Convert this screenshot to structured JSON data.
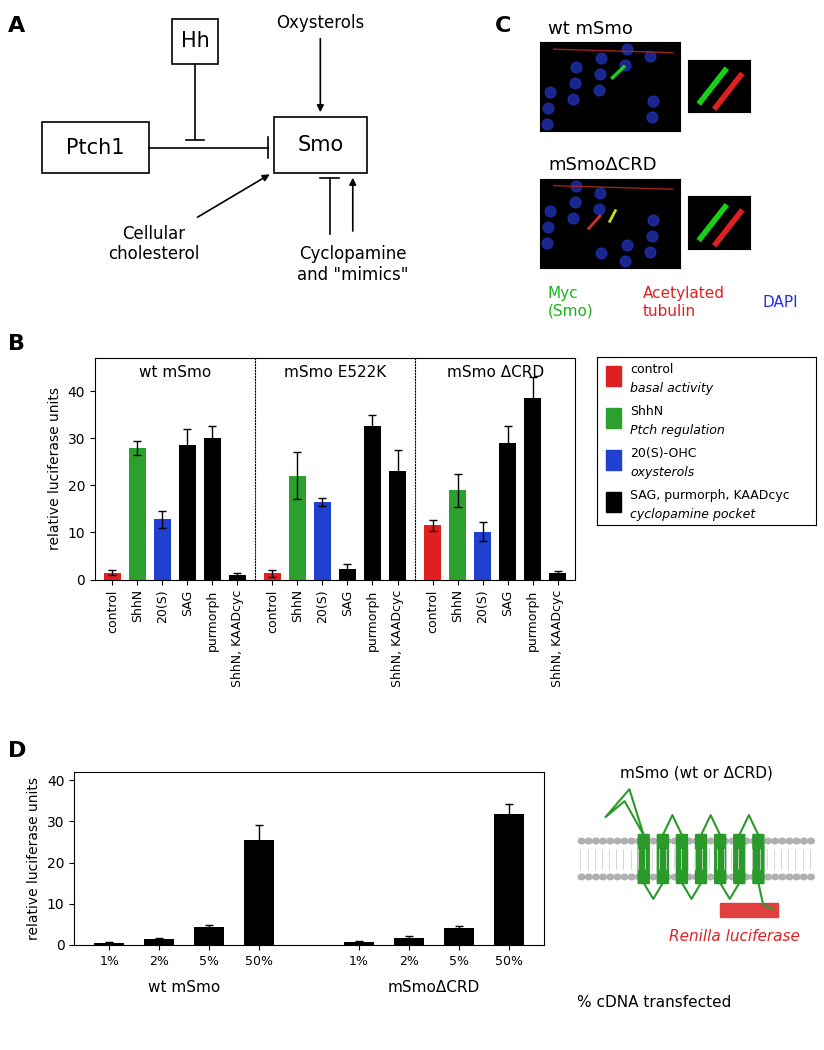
{
  "panel_labels": [
    "A",
    "B",
    "C",
    "D"
  ],
  "diagram": {
    "nodes": [
      "Hh",
      "Ptch1",
      "Smo"
    ],
    "inputs": [
      "Oxysterols",
      "Cellular\ncholesterol",
      "Cyclopamine\nand \"mimics\""
    ]
  },
  "images": {
    "panels": [
      "wt mSmo",
      "mSmoΔCRD"
    ],
    "stains": [
      {
        "label": "Myc\n(Smo)",
        "color": "#19b419"
      },
      {
        "label": "Acetylated\ntubulin",
        "color": "#e02020"
      },
      {
        "label": "DAPI",
        "color": "#2030e0"
      }
    ]
  },
  "legend_B": [
    {
      "name": "control",
      "note": "basal activity",
      "color": "#e02020"
    },
    {
      "name": "ShhN",
      "note": "Ptch regulation",
      "color": "#2ca02c"
    },
    {
      "name": "20(S)-OHC",
      "note": "oxysterols",
      "color": "#2040d0"
    },
    {
      "name": "SAG, purmorph, KAADcyc",
      "note": "cyclopamine pocket",
      "color": "#000000"
    }
  ],
  "chart_data": [
    {
      "type": "bar",
      "title": "wt mSmo",
      "categories": [
        "control",
        "ShhN",
        "20(S)",
        "SAG",
        "purmorph",
        "ShhN, KAADcyc"
      ],
      "values": [
        1.5,
        28,
        12.8,
        28.5,
        30,
        1
      ],
      "errors": [
        0.5,
        1.5,
        1.8,
        3.5,
        2.5,
        0.3
      ],
      "colors": [
        "#e02020",
        "#2ca02c",
        "#2040d0",
        "#000000",
        "#000000",
        "#000000"
      ],
      "ylim": [
        0,
        47
      ],
      "yticks": [
        0,
        10,
        20,
        30,
        40
      ],
      "ylabel": "relative luciferase units"
    },
    {
      "type": "bar",
      "title": "mSmo E522K",
      "categories": [
        "control",
        "ShhN",
        "20(S)",
        "SAG",
        "purmorph",
        "ShhN, KAADcyc"
      ],
      "values": [
        1.3,
        22,
        16.5,
        2.3,
        32.5,
        23
      ],
      "errors": [
        0.8,
        5,
        0.8,
        1,
        2.5,
        4.5
      ],
      "colors": [
        "#e02020",
        "#2ca02c",
        "#2040d0",
        "#000000",
        "#000000",
        "#000000"
      ],
      "ylim": [
        0,
        47
      ],
      "tick_labels": "x"
    },
    {
      "type": "bar",
      "title": "mSmo ΔCRD",
      "categories": [
        "control",
        "ShhN",
        "20(S)",
        "SAG",
        "purmorph",
        "ShhN, KAADcyc"
      ],
      "values": [
        11.5,
        19,
        10.2,
        29,
        38.5,
        1.5
      ],
      "errors": [
        1.2,
        3.5,
        2,
        3.5,
        4.5,
        0.3
      ],
      "colors": [
        "#e02020",
        "#2ca02c",
        "#2040d0",
        "#000000",
        "#000000",
        "#000000"
      ],
      "ylim": [
        0,
        47
      ],
      "tick_labels": "x"
    },
    {
      "type": "bar",
      "categories": [
        "1%",
        "2%",
        "5%",
        "50%"
      ],
      "series": [
        {
          "name": "wt mSmo",
          "color": "#000000",
          "values": [
            0.6,
            1.4,
            4.4,
            25.5
          ],
          "errors": [
            0.1,
            0.2,
            0.4,
            3.5
          ]
        },
        {
          "name": "mSmoΔCRD",
          "color": "#000000",
          "values": [
            0.8,
            1.6,
            4.2,
            31.8
          ],
          "errors": [
            0.2,
            0.5,
            0.3,
            2.5
          ]
        }
      ],
      "ylim": [
        0,
        42
      ],
      "yticks": [
        0,
        10,
        20,
        30,
        40
      ],
      "ylabel": "relative luciferase units",
      "xlabel": "% cDNA transfected"
    }
  ],
  "schematic_D": {
    "title": "mSmo (wt or ΔCRD)",
    "tag": "Renilla luciferase"
  }
}
